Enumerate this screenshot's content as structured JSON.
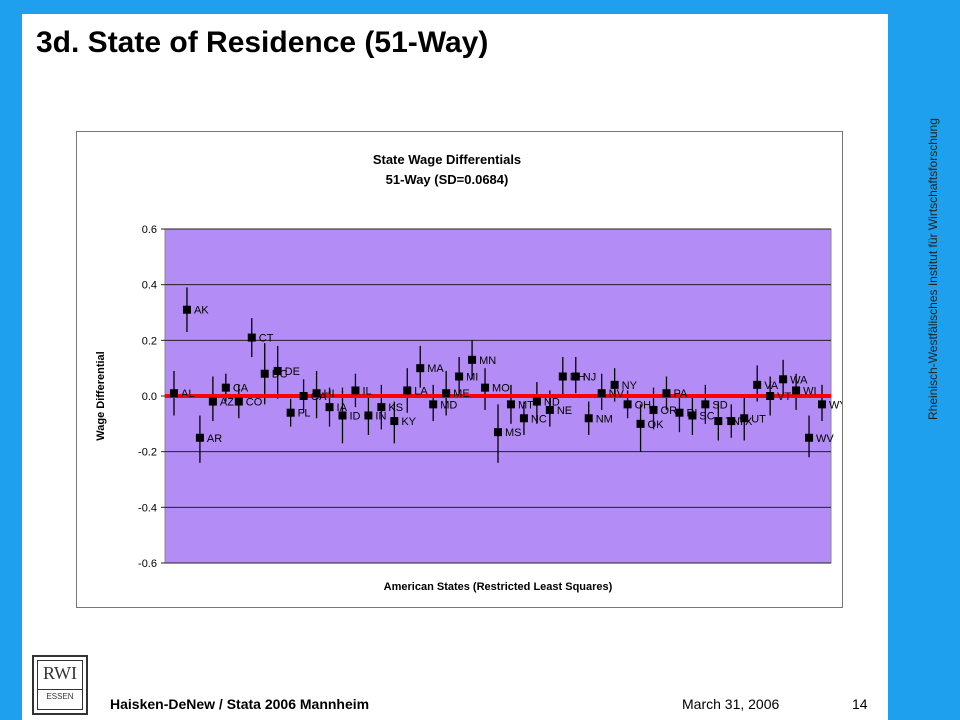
{
  "slide": {
    "title": "3d. State of Residence (51-Way)",
    "side_text": "Rheinisch-Westfälisches Institut für Wirtschaftsforschung",
    "footer_left": "Haisken-DeNew / Stata 2006 Mannheim",
    "footer_date": "March 31, 2006",
    "page_number": "14",
    "logo_top": "RWI",
    "logo_bottom": "ESSEN",
    "colors": {
      "frame": "#1ea0ee",
      "plot_area": "#b48cf5",
      "zero_line": "#ff0000",
      "marker": "#000000"
    }
  },
  "chart_data": {
    "type": "scatter",
    "title": "State Wage Differentials",
    "subtitle": "51-Way (SD=0.0684)",
    "xlabel": "American States (Restricted Least Squares)",
    "ylabel": "Wage Differential",
    "ylim": [
      -0.6,
      0.6
    ],
    "yticks": [
      "0.6",
      "0.4",
      "0.2",
      "0.0",
      "-0.2",
      "-0.4",
      "-0.6"
    ],
    "grid": true,
    "reference_line": 0,
    "points": [
      {
        "label": "AL",
        "value": 0.01,
        "lo": -0.07,
        "hi": 0.09
      },
      {
        "label": "AK",
        "value": 0.31,
        "lo": 0.23,
        "hi": 0.39
      },
      {
        "label": "AR",
        "value": -0.15,
        "lo": -0.24,
        "hi": -0.07
      },
      {
        "label": "AZ",
        "value": -0.02,
        "lo": -0.09,
        "hi": 0.07
      },
      {
        "label": "CA",
        "value": 0.03,
        "lo": -0.02,
        "hi": 0.08
      },
      {
        "label": "CO",
        "value": -0.02,
        "lo": -0.08,
        "hi": 0.04
      },
      {
        "label": "CT",
        "value": 0.21,
        "lo": 0.14,
        "hi": 0.28
      },
      {
        "label": "DC",
        "value": 0.08,
        "lo": -0.03,
        "hi": 0.19
      },
      {
        "label": "DE",
        "value": 0.09,
        "lo": -0.01,
        "hi": 0.18
      },
      {
        "label": "FL",
        "value": -0.06,
        "lo": -0.11,
        "hi": -0.01
      },
      {
        "label": "GA",
        "value": 0.0,
        "lo": -0.06,
        "hi": 0.06
      },
      {
        "label": "HI",
        "value": 0.01,
        "lo": -0.08,
        "hi": 0.09
      },
      {
        "label": "IA",
        "value": -0.04,
        "lo": -0.11,
        "hi": 0.03
      },
      {
        "label": "ID",
        "value": -0.07,
        "lo": -0.17,
        "hi": 0.03
      },
      {
        "label": "IL",
        "value": 0.02,
        "lo": -0.04,
        "hi": 0.08
      },
      {
        "label": "IN",
        "value": -0.07,
        "lo": -0.14,
        "hi": 0.0
      },
      {
        "label": "KS",
        "value": -0.04,
        "lo": -0.12,
        "hi": 0.04
      },
      {
        "label": "KY",
        "value": -0.09,
        "lo": -0.17,
        "hi": -0.02
      },
      {
        "label": "LA",
        "value": 0.02,
        "lo": -0.06,
        "hi": 0.1
      },
      {
        "label": "MA",
        "value": 0.1,
        "lo": 0.03,
        "hi": 0.18
      },
      {
        "label": "MD",
        "value": -0.03,
        "lo": -0.09,
        "hi": 0.04
      },
      {
        "label": "ME",
        "value": 0.01,
        "lo": -0.07,
        "hi": 0.09
      },
      {
        "label": "MI",
        "value": 0.07,
        "lo": 0.0,
        "hi": 0.14
      },
      {
        "label": "MN",
        "value": 0.13,
        "lo": 0.06,
        "hi": 0.2
      },
      {
        "label": "MO",
        "value": 0.03,
        "lo": -0.05,
        "hi": 0.1
      },
      {
        "label": "MS",
        "value": -0.13,
        "lo": -0.24,
        "hi": -0.03
      },
      {
        "label": "MT",
        "value": -0.03,
        "lo": -0.1,
        "hi": 0.04
      },
      {
        "label": "NC",
        "value": -0.08,
        "lo": -0.14,
        "hi": -0.02
      },
      {
        "label": "ND",
        "value": -0.02,
        "lo": -0.1,
        "hi": 0.05
      },
      {
        "label": "NE",
        "value": -0.05,
        "lo": -0.11,
        "hi": 0.02
      },
      {
        "label": "NH",
        "value": 0.07,
        "lo": 0.0,
        "hi": 0.14
      },
      {
        "label": "NJ",
        "value": 0.07,
        "lo": 0.01,
        "hi": 0.14
      },
      {
        "label": "NM",
        "value": -0.08,
        "lo": -0.14,
        "hi": -0.02
      },
      {
        "label": "NV",
        "value": 0.01,
        "lo": -0.05,
        "hi": 0.08
      },
      {
        "label": "NY",
        "value": 0.04,
        "lo": -0.02,
        "hi": 0.1
      },
      {
        "label": "OH",
        "value": -0.03,
        "lo": -0.08,
        "hi": 0.02
      },
      {
        "label": "OK",
        "value": -0.1,
        "lo": -0.2,
        "hi": -0.03
      },
      {
        "label": "OR",
        "value": -0.05,
        "lo": -0.12,
        "hi": 0.03
      },
      {
        "label": "PA",
        "value": 0.01,
        "lo": -0.05,
        "hi": 0.07
      },
      {
        "label": "RI",
        "value": -0.06,
        "lo": -0.13,
        "hi": 0.01
      },
      {
        "label": "SC",
        "value": -0.07,
        "lo": -0.14,
        "hi": 0.0
      },
      {
        "label": "SD",
        "value": -0.03,
        "lo": -0.1,
        "hi": 0.04
      },
      {
        "label": "TN",
        "value": -0.09,
        "lo": -0.16,
        "hi": -0.02
      },
      {
        "label": "TX",
        "value": -0.09,
        "lo": -0.15,
        "hi": -0.03
      },
      {
        "label": "UT",
        "value": -0.08,
        "lo": -0.16,
        "hi": 0.0
      },
      {
        "label": "VA",
        "value": 0.04,
        "lo": -0.02,
        "hi": 0.11
      },
      {
        "label": "VT",
        "value": 0.0,
        "lo": -0.07,
        "hi": 0.07
      },
      {
        "label": "WA",
        "value": 0.06,
        "lo": 0.0,
        "hi": 0.13
      },
      {
        "label": "WI",
        "value": 0.02,
        "lo": -0.05,
        "hi": 0.08
      },
      {
        "label": "WV",
        "value": -0.15,
        "lo": -0.22,
        "hi": -0.07
      },
      {
        "label": "WY",
        "value": -0.03,
        "lo": -0.09,
        "hi": 0.04
      }
    ]
  }
}
